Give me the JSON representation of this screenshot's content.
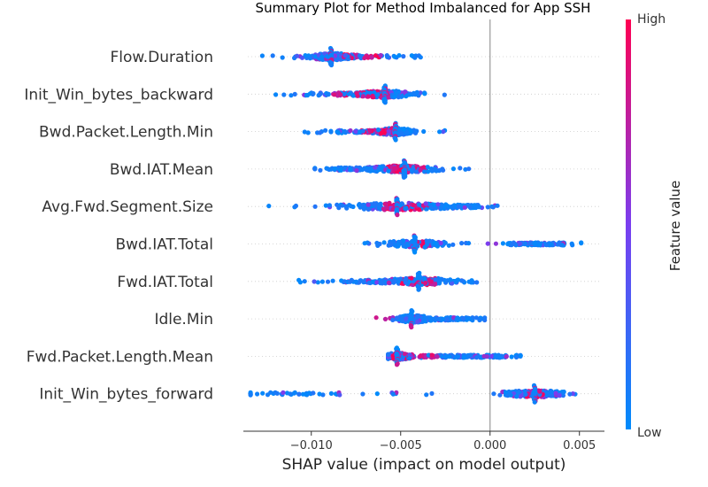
{
  "chart_data": {
    "type": "scatter",
    "title": "Summary Plot for Method Imbalanced for App SSH",
    "xlabel": "SHAP value (impact on model output)",
    "xlim": [
      -0.0138,
      0.0064
    ],
    "xticks": [
      -0.01,
      -0.005,
      0.0,
      0.005
    ],
    "xtick_labels": [
      "−0.010",
      "−0.005",
      "0.000",
      "0.005"
    ],
    "features": [
      {
        "name": "Flow.Duration",
        "range": [
          -0.0129,
          -0.0036
        ],
        "centers": [
          {
            "x": -0.0088,
            "w": 0.7,
            "spread": 0.0006
          },
          {
            "x": -0.0075,
            "w": 0.3,
            "spread": 0.0012
          }
        ],
        "spike": -0.0089,
        "high_zone": [
          -0.0082,
          -0.0062
        ]
      },
      {
        "name": "Init_Win_bytes_backward",
        "range": [
          -0.0121,
          -0.0023
        ],
        "centers": [
          {
            "x": -0.0058,
            "w": 0.6,
            "spread": 0.0008
          },
          {
            "x": -0.0075,
            "w": 0.4,
            "spread": 0.0015
          }
        ],
        "spike": -0.0059,
        "high_zone": [
          -0.0088,
          -0.0055
        ]
      },
      {
        "name": "Bwd.Packet.Length.Min",
        "range": [
          -0.0104,
          -0.0024
        ],
        "centers": [
          {
            "x": -0.0053,
            "w": 0.7,
            "spread": 0.0005
          },
          {
            "x": -0.0068,
            "w": 0.3,
            "spread": 0.0011
          }
        ],
        "spike": -0.0053,
        "high_zone": [
          -0.0072,
          -0.0054
        ]
      },
      {
        "name": "Bwd.IAT.Mean",
        "range": [
          -0.0098,
          -0.001
        ],
        "centers": [
          {
            "x": -0.0048,
            "w": 0.6,
            "spread": 0.001
          },
          {
            "x": -0.007,
            "w": 0.4,
            "spread": 0.0015
          }
        ],
        "spike": -0.0048,
        "high_zone": [
          -0.0058,
          -0.0035
        ]
      },
      {
        "name": "Avg.Fwd.Segment.Size",
        "range": [
          -0.0125,
          0.0007
        ],
        "centers": [
          {
            "x": -0.0052,
            "w": 0.6,
            "spread": 0.0015
          },
          {
            "x": -0.002,
            "w": 0.4,
            "spread": 0.0012
          }
        ],
        "spike": -0.0052,
        "high_zone": [
          -0.006,
          -0.0032
        ]
      },
      {
        "name": "Bwd.IAT.Total",
        "range": [
          -0.0072,
          0.0051
        ],
        "centers": [
          {
            "x": -0.0042,
            "w": 0.55,
            "spread": 0.0009
          },
          {
            "x": 0.0028,
            "w": 0.45,
            "spread": 0.001
          }
        ],
        "spike": -0.0042,
        "high_zone": [
          -0.0043,
          -0.0035
        ]
      },
      {
        "name": "Fwd.IAT.Total",
        "range": [
          -0.0112,
          0.0
        ],
        "centers": [
          {
            "x": -0.0039,
            "w": 0.6,
            "spread": 0.001
          },
          {
            "x": -0.006,
            "w": 0.4,
            "spread": 0.0012
          }
        ],
        "spike": -0.004,
        "high_zone": [
          -0.005,
          -0.003
        ]
      },
      {
        "name": "Idle.Min",
        "range": [
          -0.0073,
          -0.0003
        ],
        "centers": [
          {
            "x": -0.0043,
            "w": 0.6,
            "spread": 0.0005
          },
          {
            "x": -0.0025,
            "w": 0.4,
            "spread": 0.001
          }
        ],
        "spike": -0.0044,
        "high_zone": [
          -0.0068,
          -0.0055
        ]
      },
      {
        "name": "Fwd.Packet.Length.Mean",
        "range": [
          -0.0057,
          0.0017
        ],
        "centers": [
          {
            "x": -0.0052,
            "w": 0.4,
            "spread": 0.0004
          },
          {
            "x": -0.002,
            "w": 0.6,
            "spread": 0.0018
          }
        ],
        "spike": -0.0052,
        "high_zone": [
          -0.0056,
          -0.0028
        ]
      },
      {
        "name": "Init_Win_bytes_forward",
        "range": [
          -0.0134,
          0.0055
        ],
        "centers": [
          {
            "x": 0.0025,
            "w": 0.85,
            "spread": 0.0009
          },
          {
            "x": -0.0105,
            "w": 0.15,
            "spread": 0.002
          }
        ],
        "spike": 0.0025,
        "high_zone": [
          0.002,
          0.003
        ]
      }
    ],
    "colorbar": {
      "label": "Feature value",
      "high_label": "High",
      "low_label": "Low",
      "high_color": "#ff0052",
      "mid_color": "#7a3ef0",
      "low_color": "#008bfb"
    },
    "grid": false,
    "zero_line": true
  }
}
